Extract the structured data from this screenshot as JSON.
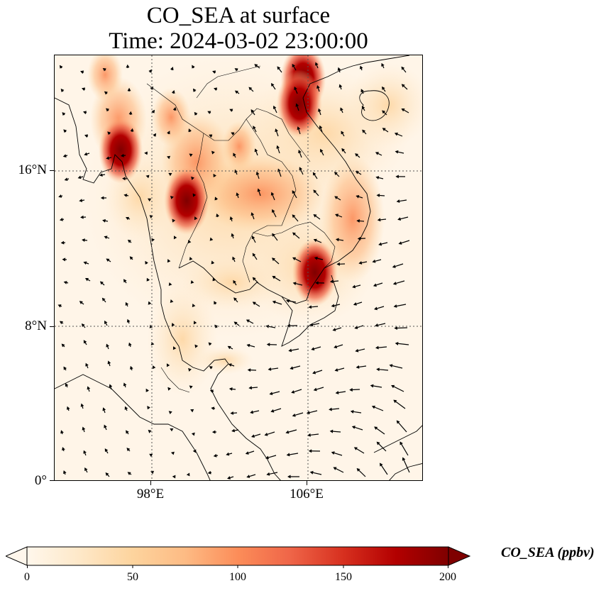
{
  "title": {
    "line1": "CO_SEA at surface",
    "line2": "Time: 2024-03-02 23:00:00"
  },
  "axes": {
    "lat_labels": [
      "16°N",
      "8°N",
      "0°"
    ],
    "lon_labels": [
      "98°E",
      "106°E"
    ]
  },
  "colorbar": {
    "label": "CO_SEA (ppbv)",
    "ticks": [
      "0",
      "50",
      "100",
      "150",
      "200"
    ],
    "range": [
      0,
      200
    ],
    "extend": "both",
    "colormap": "OrRd",
    "colors": [
      "#fff7ec",
      "#fee8c8",
      "#fdd49e",
      "#fdbb84",
      "#fc8d59",
      "#ef6548",
      "#d7301f",
      "#b30000",
      "#7f0000"
    ]
  },
  "map": {
    "lon_range": [
      93,
      112
    ],
    "lat_range": [
      0,
      22
    ],
    "gridlines": "dotted",
    "wind_vectors": true,
    "hotspots": [
      {
        "lat": 20.8,
        "lon": 105.8,
        "level": 200
      },
      {
        "lat": 19.5,
        "lon": 105.6,
        "level": 200
      },
      {
        "lat": 10.8,
        "lon": 106.4,
        "level": 200
      },
      {
        "lat": 14.5,
        "lon": 99.8,
        "level": 200
      },
      {
        "lat": 17.1,
        "lon": 96.4,
        "level": 190
      },
      {
        "lat": 18.8,
        "lon": 99.0,
        "level": 150
      },
      {
        "lat": 21.0,
        "lon": 95.6,
        "level": 120
      },
      {
        "lat": 17.3,
        "lon": 102.5,
        "level": 110
      }
    ]
  }
}
